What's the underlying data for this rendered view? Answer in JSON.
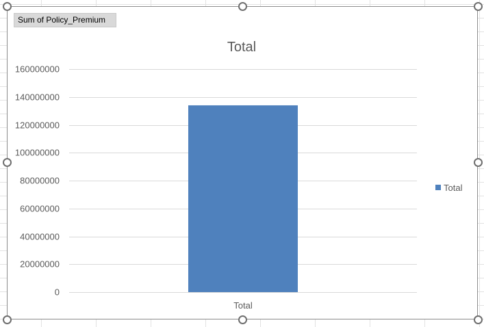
{
  "field_button": {
    "label": "Sum of Policy_Premium"
  },
  "colors": {
    "bar": "#4f81bd",
    "gridline": "#d9d9d9",
    "text": "#595959",
    "border": "#8c8c8c"
  },
  "chart_data": {
    "type": "bar",
    "title": "Total",
    "categories": [
      "Total"
    ],
    "series": [
      {
        "name": "Total",
        "values": [
          134000000
        ]
      }
    ],
    "xlabel": "",
    "ylabel": "",
    "ylim": [
      0,
      160000000
    ],
    "yticks": [
      0,
      20000000,
      40000000,
      60000000,
      80000000,
      100000000,
      120000000,
      140000000,
      160000000
    ],
    "grid": true,
    "legend": "right"
  }
}
